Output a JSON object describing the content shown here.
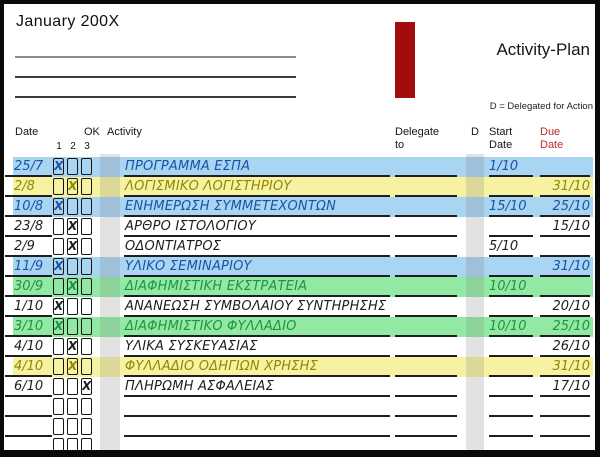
{
  "header": {
    "month_title": "January 200X",
    "plan_title": "Activity-Plan",
    "legend": "D = Delegated for Action"
  },
  "columns": {
    "date": "Date",
    "ok": "OK",
    "ok_numbers": [
      "1",
      "2",
      "3"
    ],
    "activity": "Activity",
    "delegate_line1": "Delegate",
    "delegate_line2": "to",
    "d": "D",
    "start_line1": "Start",
    "start_line2": "Date",
    "due_line1": "Due",
    "due_line2": "Date"
  },
  "marks": {
    "checked_glyph": "X"
  },
  "rows": [
    {
      "date": "25/7",
      "ok_box": 1,
      "activity": "ΠΡΟΓΡΑΜΜΑ ΕΣΠΑ",
      "delegate_to": "",
      "d": "",
      "start_date": "1/10",
      "due_date": "",
      "highlight": "blue"
    },
    {
      "date": "2/8",
      "ok_box": 2,
      "activity": "ΛΟΓΙΣΜΙΚΟ ΛΟΓΙΣΤΗΡΙΟΥ",
      "delegate_to": "",
      "d": "",
      "start_date": "",
      "due_date": "31/10",
      "highlight": "yellow"
    },
    {
      "date": "10/8",
      "ok_box": 1,
      "activity": "ΕΝΗΜΕΡΩΣΗ ΣΥΜΜΕΤΕΧΟΝΤΩΝ",
      "delegate_to": "",
      "d": "",
      "start_date": "15/10",
      "due_date": "25/10",
      "highlight": "blue"
    },
    {
      "date": "23/8",
      "ok_box": 2,
      "activity": "ΑΡΘΡΟ ΙΣΤΟΛΟΓΙΟΥ",
      "delegate_to": "",
      "d": "",
      "start_date": "",
      "due_date": "15/10",
      "highlight": "none"
    },
    {
      "date": "2/9",
      "ok_box": 2,
      "activity": "ΟΔΟΝΤΙΑΤΡΟΣ",
      "delegate_to": "",
      "d": "",
      "start_date": "5/10",
      "due_date": "",
      "highlight": "none"
    },
    {
      "date": "11/9",
      "ok_box": 1,
      "activity": "ΥΛΙΚΟ ΣΕΜΙΝΑΡΙΟΥ",
      "delegate_to": "",
      "d": "",
      "start_date": "",
      "due_date": "31/10",
      "highlight": "blue"
    },
    {
      "date": "30/9",
      "ok_box": 2,
      "activity": "ΔΙΑΦΗΜΙΣΤΙΚΗ ΕΚΣΤΡΑΤΕΙΑ",
      "delegate_to": "",
      "d": "",
      "start_date": "10/10",
      "due_date": "",
      "highlight": "green"
    },
    {
      "date": "1/10",
      "ok_box": 1,
      "activity": "ΑΝΑΝΕΩΣΗ ΣΥΜΒΟΛΑΙΟΥ ΣΥΝΤΗΡΗΣΗΣ",
      "delegate_to": "",
      "d": "",
      "start_date": "",
      "due_date": "20/10",
      "highlight": "none"
    },
    {
      "date": "3/10",
      "ok_box": 1,
      "activity": "ΔΙΑΦΗΜΙΣΤΙΚΟ ΦΥΛΛΑΔΙΟ",
      "delegate_to": "",
      "d": "",
      "start_date": "10/10",
      "due_date": "25/10",
      "highlight": "green"
    },
    {
      "date": "4/10",
      "ok_box": 2,
      "activity": "ΥΛΙΚΑ ΣΥΣΚΕΥΑΣΙΑΣ",
      "delegate_to": "",
      "d": "",
      "start_date": "",
      "due_date": "26/10",
      "highlight": "none"
    },
    {
      "date": "4/10",
      "ok_box": 2,
      "activity": "ΦΥΛΛΑΔΙΟ ΟΔΗΓΙΩΝ ΧΡΗΣΗΣ",
      "delegate_to": "",
      "d": "",
      "start_date": "",
      "due_date": "31/10",
      "highlight": "yellow"
    },
    {
      "date": "6/10",
      "ok_box": 3,
      "activity": "ΠΛΗΡΩΜΗ ΑΣΦΑΛΕΙΑΣ",
      "delegate_to": "",
      "d": "",
      "start_date": "",
      "due_date": "17/10",
      "highlight": "none"
    }
  ],
  "empty_row_count": 2,
  "partial_box_row": true,
  "colors": {
    "highlight_blue": "#a9d4f2",
    "highlight_yellow": "#f6f2a2",
    "highlight_green": "#92e9a4",
    "text_blue": "#1953a8",
    "text_yellow": "#8f8800",
    "text_green": "#1e9346",
    "text_plain": "#1d1d1d",
    "red_bar": "#a30c0c",
    "due_header_red": "#c0272d"
  }
}
